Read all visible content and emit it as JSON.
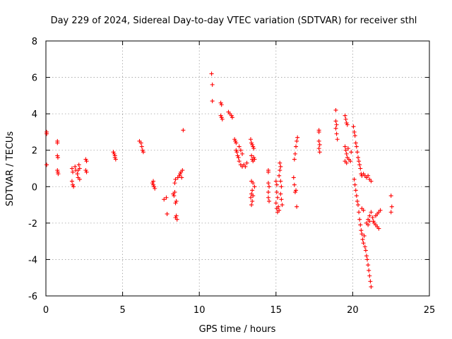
{
  "chart_data": {
    "type": "scatter",
    "title": "Day 229 of 2024, Sidereal Day-to-day VTEC variation (SDTVAR) for receiver sthl",
    "xlabel": "GPS time / hours",
    "ylabel": "SDTVAR / TECUs",
    "xlim": [
      0,
      25
    ],
    "ylim": [
      -6,
      8
    ],
    "xticks": [
      0,
      5,
      10,
      15,
      20,
      25
    ],
    "yticks": [
      -6,
      -4,
      -2,
      0,
      2,
      4,
      6,
      8
    ],
    "xtick_labels": [
      "0",
      "5",
      "10",
      "15",
      "20",
      "25"
    ],
    "ytick_labels": [
      "-6",
      "-4",
      "-2",
      "0",
      "2",
      "4",
      "6",
      "8"
    ],
    "grid": true,
    "marker": "+",
    "color": "#ff0000",
    "series": [
      {
        "name": "sthl",
        "points": [
          [
            0.05,
            3.0
          ],
          [
            0.05,
            2.9
          ],
          [
            0.05,
            1.2
          ],
          [
            0.75,
            2.5
          ],
          [
            0.75,
            2.4
          ],
          [
            0.75,
            1.7
          ],
          [
            0.78,
            1.6
          ],
          [
            0.75,
            0.9
          ],
          [
            0.78,
            0.8
          ],
          [
            0.8,
            0.7
          ],
          [
            1.7,
            1.0
          ],
          [
            1.75,
            0.8
          ],
          [
            1.7,
            0.3
          ],
          [
            1.75,
            0.1
          ],
          [
            1.8,
            0.0
          ],
          [
            1.9,
            1.1
          ],
          [
            1.95,
            0.9
          ],
          [
            2.1,
            0.9
          ],
          [
            2.15,
            1.2
          ],
          [
            2.2,
            1.0
          ],
          [
            2.1,
            0.5
          ],
          [
            2.2,
            0.4
          ],
          [
            2.05,
            0.7
          ],
          [
            2.6,
            1.5
          ],
          [
            2.65,
            1.4
          ],
          [
            2.6,
            0.9
          ],
          [
            2.65,
            0.8
          ],
          [
            4.4,
            1.9
          ],
          [
            4.45,
            1.8
          ],
          [
            4.5,
            1.7
          ],
          [
            4.5,
            1.6
          ],
          [
            4.55,
            1.5
          ],
          [
            6.1,
            2.5
          ],
          [
            6.2,
            2.4
          ],
          [
            6.25,
            2.2
          ],
          [
            6.3,
            2.0
          ],
          [
            6.35,
            1.9
          ],
          [
            6.95,
            0.2
          ],
          [
            7.0,
            0.1
          ],
          [
            7.05,
            0.0
          ],
          [
            7.1,
            -0.1
          ],
          [
            7.0,
            0.3
          ],
          [
            7.7,
            -0.7
          ],
          [
            7.85,
            -0.6
          ],
          [
            7.9,
            -1.5
          ],
          [
            8.3,
            -0.4
          ],
          [
            8.35,
            -0.5
          ],
          [
            8.4,
            -0.3
          ],
          [
            8.4,
            0.2
          ],
          [
            8.45,
            0.4
          ],
          [
            8.5,
            -1.6
          ],
          [
            8.45,
            -1.7
          ],
          [
            8.55,
            -1.8
          ],
          [
            8.5,
            -0.8
          ],
          [
            8.45,
            -0.9
          ],
          [
            8.6,
            0.5
          ],
          [
            8.7,
            0.6
          ],
          [
            8.75,
            0.7
          ],
          [
            8.8,
            0.8
          ],
          [
            8.85,
            0.5
          ],
          [
            8.9,
            0.9
          ],
          [
            8.95,
            3.1
          ],
          [
            10.8,
            6.2
          ],
          [
            10.85,
            5.6
          ],
          [
            10.85,
            4.7
          ],
          [
            11.4,
            4.6
          ],
          [
            11.45,
            4.5
          ],
          [
            11.4,
            3.9
          ],
          [
            11.45,
            3.8
          ],
          [
            11.5,
            3.7
          ],
          [
            11.9,
            4.1
          ],
          [
            12.0,
            4.0
          ],
          [
            12.1,
            3.9
          ],
          [
            12.15,
            3.8
          ],
          [
            12.3,
            2.6
          ],
          [
            12.35,
            2.5
          ],
          [
            12.4,
            2.4
          ],
          [
            12.4,
            2.0
          ],
          [
            12.45,
            1.9
          ],
          [
            12.5,
            1.7
          ],
          [
            12.55,
            1.6
          ],
          [
            12.6,
            1.4
          ],
          [
            12.7,
            1.2
          ],
          [
            12.8,
            1.1
          ],
          [
            12.9,
            1.2
          ],
          [
            13.0,
            1.1
          ],
          [
            12.6,
            2.2
          ],
          [
            12.7,
            2.0
          ],
          [
            12.8,
            1.8
          ],
          [
            13.1,
            1.3
          ],
          [
            13.35,
            2.6
          ],
          [
            13.4,
            2.4
          ],
          [
            13.45,
            2.3
          ],
          [
            13.5,
            2.2
          ],
          [
            13.55,
            2.1
          ],
          [
            13.4,
            1.7
          ],
          [
            13.45,
            1.5
          ],
          [
            13.5,
            1.4
          ],
          [
            13.55,
            1.6
          ],
          [
            13.6,
            1.5
          ],
          [
            13.4,
            0.3
          ],
          [
            13.5,
            0.2
          ],
          [
            13.45,
            -0.2
          ],
          [
            13.4,
            -0.4
          ],
          [
            13.35,
            -0.6
          ],
          [
            13.4,
            -1.0
          ],
          [
            13.45,
            -0.8
          ],
          [
            13.5,
            -0.5
          ],
          [
            13.6,
            0.0
          ],
          [
            14.5,
            0.9
          ],
          [
            14.5,
            0.8
          ],
          [
            14.5,
            0.2
          ],
          [
            14.55,
            0.0
          ],
          [
            14.5,
            -0.3
          ],
          [
            14.5,
            -0.6
          ],
          [
            14.55,
            -0.8
          ],
          [
            15.0,
            0.3
          ],
          [
            15.05,
            0.1
          ],
          [
            15.05,
            -0.3
          ],
          [
            15.1,
            -0.6
          ],
          [
            15.0,
            -0.9
          ],
          [
            15.05,
            -1.2
          ],
          [
            15.1,
            -1.4
          ],
          [
            15.15,
            -1.1
          ],
          [
            15.2,
            -1.3
          ],
          [
            15.25,
            1.3
          ],
          [
            15.3,
            1.1
          ],
          [
            15.25,
            0.9
          ],
          [
            15.2,
            0.6
          ],
          [
            15.3,
            0.3
          ],
          [
            15.35,
            0.0
          ],
          [
            15.3,
            -0.4
          ],
          [
            15.35,
            -0.7
          ],
          [
            15.4,
            -1.0
          ],
          [
            16.15,
            0.5
          ],
          [
            16.2,
            0.1
          ],
          [
            16.25,
            -0.3
          ],
          [
            16.3,
            -0.2
          ],
          [
            16.35,
            -1.1
          ],
          [
            16.2,
            1.5
          ],
          [
            16.25,
            1.8
          ],
          [
            16.3,
            2.2
          ],
          [
            16.35,
            2.5
          ],
          [
            16.4,
            2.7
          ],
          [
            17.8,
            3.1
          ],
          [
            17.8,
            3.0
          ],
          [
            17.8,
            2.5
          ],
          [
            17.85,
            2.3
          ],
          [
            17.8,
            2.1
          ],
          [
            17.85,
            1.9
          ],
          [
            18.9,
            4.2
          ],
          [
            18.9,
            3.6
          ],
          [
            18.95,
            3.4
          ],
          [
            18.9,
            3.2
          ],
          [
            18.95,
            2.9
          ],
          [
            19.0,
            2.6
          ],
          [
            19.5,
            3.9
          ],
          [
            19.55,
            3.7
          ],
          [
            19.6,
            3.5
          ],
          [
            19.65,
            3.4
          ],
          [
            19.5,
            2.2
          ],
          [
            19.55,
            2.0
          ],
          [
            19.6,
            1.8
          ],
          [
            19.65,
            1.6
          ],
          [
            19.5,
            1.4
          ],
          [
            19.6,
            1.3
          ],
          [
            19.75,
            1.5
          ],
          [
            19.85,
            1.4
          ],
          [
            19.7,
            2.1
          ],
          [
            19.9,
            1.9
          ],
          [
            20.05,
            3.3
          ],
          [
            20.1,
            3.0
          ],
          [
            20.15,
            2.8
          ],
          [
            20.2,
            2.4
          ],
          [
            20.25,
            2.2
          ],
          [
            20.3,
            1.9
          ],
          [
            20.35,
            1.6
          ],
          [
            20.4,
            1.4
          ],
          [
            20.45,
            1.2
          ],
          [
            20.5,
            1.0
          ],
          [
            20.55,
            0.7
          ],
          [
            20.6,
            0.6
          ],
          [
            20.7,
            0.7
          ],
          [
            20.8,
            0.6
          ],
          [
            20.9,
            0.5
          ],
          [
            21.0,
            0.6
          ],
          [
            21.1,
            0.4
          ],
          [
            21.2,
            0.3
          ],
          [
            20.1,
            0.4
          ],
          [
            20.15,
            0.1
          ],
          [
            20.2,
            -0.2
          ],
          [
            20.25,
            -0.5
          ],
          [
            20.3,
            -0.8
          ],
          [
            20.35,
            -1.0
          ],
          [
            20.4,
            -1.4
          ],
          [
            20.45,
            -1.8
          ],
          [
            20.5,
            -2.1
          ],
          [
            20.55,
            -2.4
          ],
          [
            20.6,
            -2.6
          ],
          [
            20.65,
            -2.9
          ],
          [
            20.7,
            -3.1
          ],
          [
            20.75,
            -2.7
          ],
          [
            20.6,
            -1.2
          ],
          [
            20.7,
            -1.3
          ],
          [
            20.8,
            -3.3
          ],
          [
            20.85,
            -3.5
          ],
          [
            20.9,
            -3.8
          ],
          [
            20.95,
            -4.0
          ],
          [
            21.0,
            -4.3
          ],
          [
            21.05,
            -4.6
          ],
          [
            21.1,
            -4.9
          ],
          [
            21.15,
            -5.2
          ],
          [
            21.2,
            -5.5
          ],
          [
            20.9,
            -2.0
          ],
          [
            21.0,
            -1.8
          ],
          [
            21.1,
            -1.6
          ],
          [
            21.2,
            -1.4
          ],
          [
            21.3,
            -1.7
          ],
          [
            21.35,
            -1.9
          ],
          [
            21.4,
            -2.0
          ],
          [
            21.5,
            -2.1
          ],
          [
            21.6,
            -2.2
          ],
          [
            21.7,
            -2.3
          ],
          [
            21.5,
            -1.6
          ],
          [
            21.6,
            -1.5
          ],
          [
            21.7,
            -1.4
          ],
          [
            21.8,
            -1.3
          ],
          [
            21.0,
            -2.1
          ],
          [
            21.1,
            -1.9
          ],
          [
            22.5,
            -0.5
          ],
          [
            22.55,
            -1.1
          ],
          [
            22.5,
            -1.4
          ]
        ]
      }
    ]
  }
}
